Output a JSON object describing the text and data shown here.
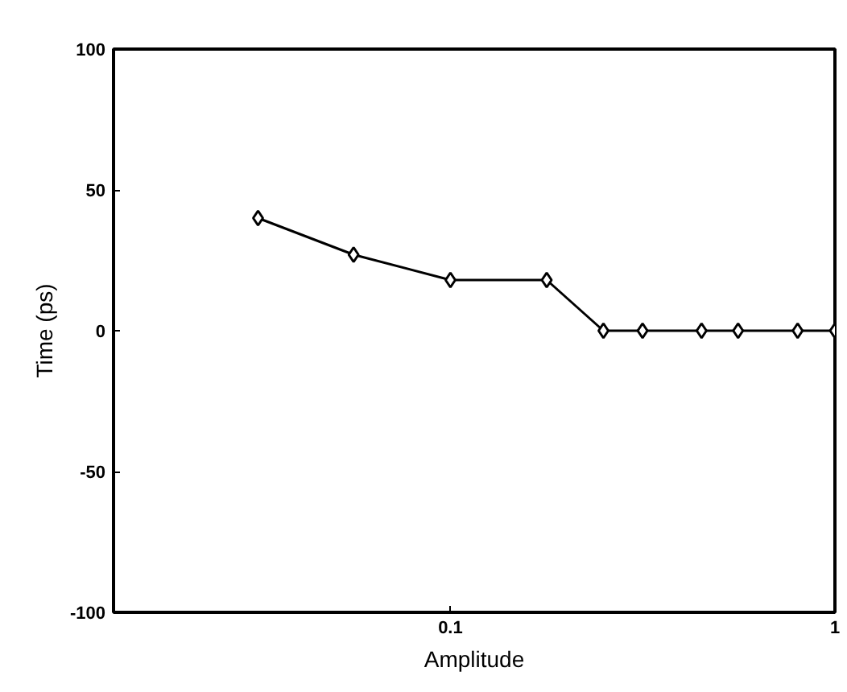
{
  "chart_data": {
    "type": "line",
    "xlabel": "Amplitude",
    "ylabel": "Time (ps)",
    "log": "x",
    "x": [
      0.0316,
      0.056,
      0.1,
      0.178,
      0.25,
      0.316,
      0.45,
      0.56,
      0.8,
      1.0
    ],
    "series": [
      {
        "color": "#000000",
        "values": [
          40,
          27,
          18,
          18,
          0,
          0,
          0,
          0,
          0,
          0
        ]
      }
    ],
    "xlim": [
      0.0133,
      1.0
    ],
    "xticks": [
      0.1,
      1
    ],
    "ylim": [
      -100,
      100
    ],
    "yticks": [
      100,
      50,
      0,
      -50,
      -100
    ],
    "marker": "diamond",
    "line_style": "solid",
    "grid": false
  }
}
